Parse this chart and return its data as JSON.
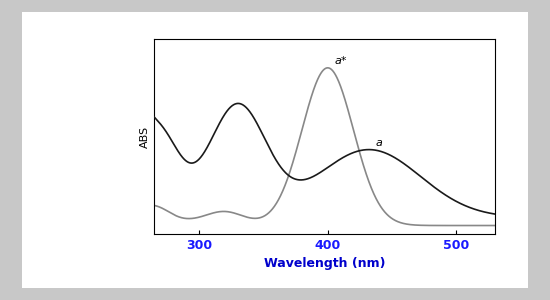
{
  "xlabel": "Wavelength (nm)",
  "ylabel": "ABS",
  "xlabel_color": "#0000cc",
  "ylabel_color": "#000000",
  "x_ticks": [
    300,
    400,
    500
  ],
  "x_tick_color": "#1a1aff",
  "xlim": [
    265,
    530
  ],
  "ylim": [
    -0.05,
    1.1
  ],
  "background_color": "#ffffff",
  "outer_bg": "#c8c8c8",
  "inner_bg": "#ffffff",
  "annotation_a_star": "a*",
  "annotation_a": "a",
  "curve1_color": "#1a1a1a",
  "curve2_color": "#888888"
}
